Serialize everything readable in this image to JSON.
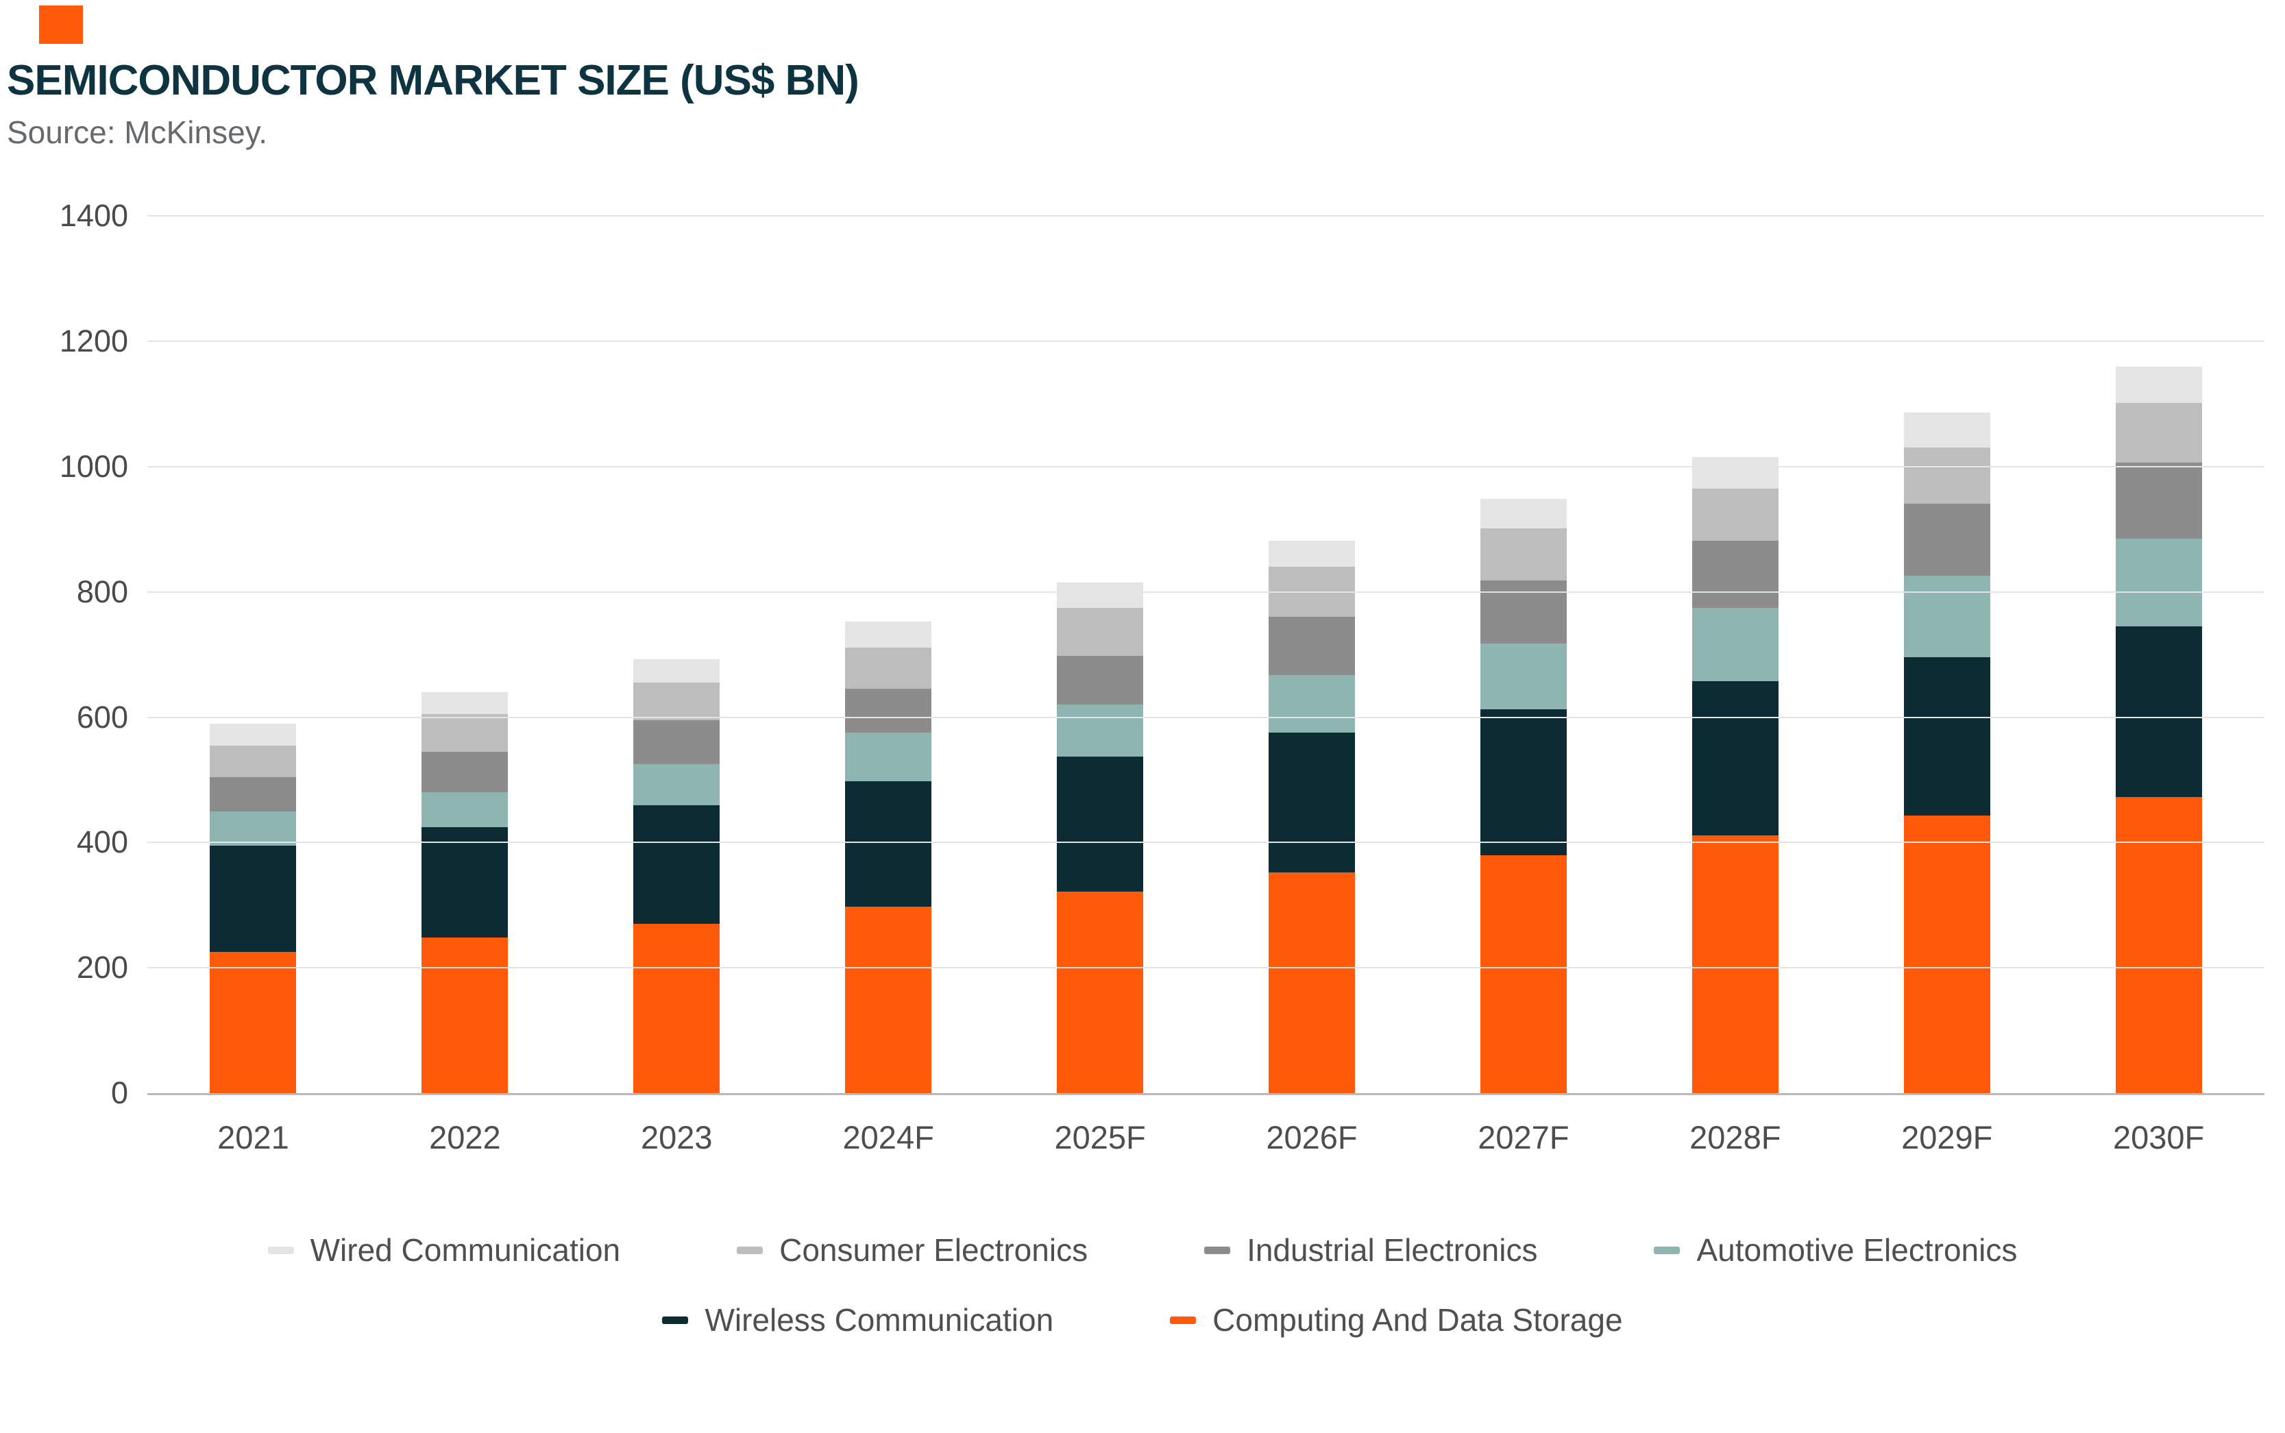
{
  "accent": {
    "color": "#ff5a0a"
  },
  "header": {
    "title": "SEMICONDUCTOR MARKET SIZE (US$ BN)",
    "source": "Source: McKinsey."
  },
  "chart_data": {
    "type": "bar",
    "stacked": true,
    "title": "Semiconductor Market Size (US$ BN)",
    "categories": [
      "2021",
      "2022",
      "2023",
      "2024F",
      "2025F",
      "2026F",
      "2027F",
      "2028F",
      "2029F",
      "2030F"
    ],
    "series": [
      {
        "name": "Computing And Data Storage",
        "color": "#ff5a0a",
        "values": [
          225,
          248,
          270,
          298,
          322,
          352,
          380,
          412,
          443,
          473
        ]
      },
      {
        "name": "Wireless Communication",
        "color": "#0c2b33",
        "values": [
          170,
          177,
          190,
          200,
          215,
          223,
          233,
          246,
          253,
          272
        ]
      },
      {
        "name": "Automotive Electronics",
        "color": "#8fb5b2",
        "values": [
          55,
          55,
          65,
          78,
          83,
          92,
          105,
          117,
          130,
          140
        ]
      },
      {
        "name": "Industrial Electronics",
        "color": "#8c8c8c",
        "values": [
          55,
          65,
          70,
          70,
          78,
          93,
          100,
          107,
          115,
          122
        ]
      },
      {
        "name": "Consumer Electronics",
        "color": "#bdbdbd",
        "values": [
          50,
          60,
          60,
          65,
          77,
          80,
          83,
          83,
          90,
          95
        ]
      },
      {
        "name": "Wired Communication",
        "color": "#e4e4e4",
        "values": [
          35,
          35,
          38,
          42,
          40,
          42,
          47,
          50,
          55,
          58
        ]
      }
    ],
    "ylim": [
      0,
      1400
    ],
    "ytick_step": 200,
    "yticks": [
      "0",
      "200",
      "400",
      "600",
      "800",
      "1000",
      "1200",
      "1400"
    ],
    "grid": "horizontal",
    "legend_position": "bottom",
    "legend_rows": [
      [
        "Wired Communication",
        "Consumer Electronics",
        "Industrial Electronics",
        "Automotive Electronics"
      ],
      [
        "Wireless Communication",
        "Computing And Data Storage"
      ]
    ]
  }
}
